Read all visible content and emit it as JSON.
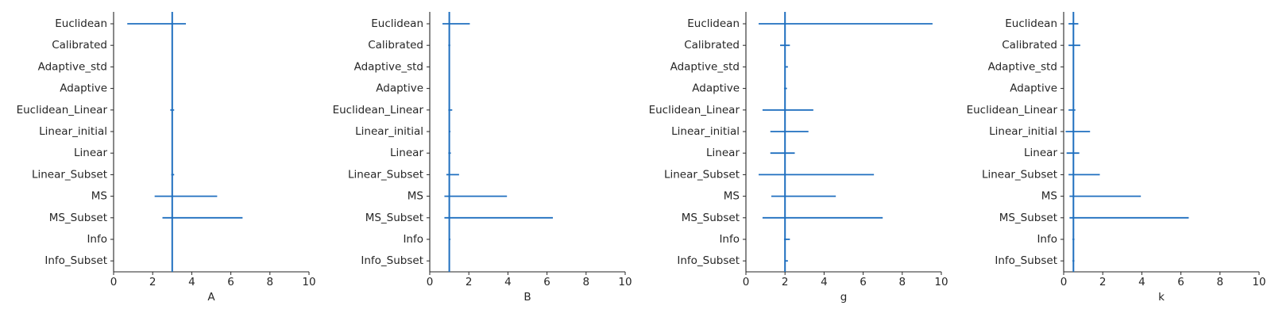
{
  "chart_data": [
    {
      "type": "errorbar",
      "xlabel": "A",
      "xlim": [
        0,
        10
      ],
      "xticks": [
        0,
        2,
        4,
        6,
        8,
        10
      ],
      "true_value": 3,
      "categories": [
        "Euclidean",
        "Calibrated",
        "Adaptive_std",
        "Adaptive",
        "Euclidean_Linear",
        "Linear_initial",
        "Linear",
        "Linear_Subset",
        "MS",
        "MS_Subset",
        "Info",
        "Info_Subset"
      ],
      "intervals": [
        [
          0.7,
          3.7
        ],
        [
          null,
          null
        ],
        [
          null,
          null
        ],
        [
          null,
          null
        ],
        [
          2.9,
          3.1
        ],
        [
          null,
          null
        ],
        [
          null,
          null
        ],
        [
          2.95,
          3.1
        ],
        [
          2.1,
          5.3
        ],
        [
          2.5,
          6.6
        ],
        [
          null,
          null
        ],
        [
          null,
          null
        ]
      ],
      "color": "#1f6fbf"
    },
    {
      "type": "errorbar",
      "xlabel": "B",
      "xlim": [
        0,
        10
      ],
      "xticks": [
        0,
        2,
        4,
        6,
        8,
        10
      ],
      "true_value": 1,
      "categories": [
        "Euclidean",
        "Calibrated",
        "Adaptive_std",
        "Adaptive",
        "Euclidean_Linear",
        "Linear_initial",
        "Linear",
        "Linear_Subset",
        "MS",
        "MS_Subset",
        "Info",
        "Info_Subset"
      ],
      "intervals": [
        [
          0.65,
          2.05
        ],
        [
          0.95,
          1.05
        ],
        [
          null,
          null
        ],
        [
          null,
          null
        ],
        [
          0.95,
          1.15
        ],
        [
          0.98,
          1.06
        ],
        [
          0.95,
          1.08
        ],
        [
          0.85,
          1.5
        ],
        [
          0.75,
          3.95
        ],
        [
          0.75,
          6.3
        ],
        [
          1.0,
          1.06
        ],
        [
          null,
          null
        ]
      ],
      "color": "#1f6fbf"
    },
    {
      "type": "errorbar",
      "xlabel": "g",
      "xlim": [
        0,
        10
      ],
      "xticks": [
        0,
        2,
        4,
        6,
        8,
        10
      ],
      "true_value": 2,
      "categories": [
        "Euclidean",
        "Calibrated",
        "Adaptive_std",
        "Adaptive",
        "Euclidean_Linear",
        "Linear_initial",
        "Linear",
        "Linear_Subset",
        "MS",
        "MS_Subset",
        "Info",
        "Info_Subset"
      ],
      "intervals": [
        [
          0.65,
          9.55
        ],
        [
          1.75,
          2.25
        ],
        [
          2.0,
          2.15
        ],
        [
          1.95,
          2.1
        ],
        [
          0.85,
          3.45
        ],
        [
          1.25,
          3.2
        ],
        [
          1.25,
          2.5
        ],
        [
          0.65,
          6.55
        ],
        [
          1.3,
          4.6
        ],
        [
          0.85,
          7.0
        ],
        [
          1.95,
          2.25
        ],
        [
          2.0,
          2.15
        ]
      ],
      "color": "#1f6fbf"
    },
    {
      "type": "errorbar",
      "xlabel": "k",
      "xlim": [
        0,
        10
      ],
      "xticks": [
        0,
        2,
        4,
        6,
        8,
        10
      ],
      "true_value": 0.5,
      "categories": [
        "Euclidean",
        "Calibrated",
        "Adaptive_std",
        "Adaptive",
        "Euclidean_Linear",
        "Linear_initial",
        "Linear",
        "Linear_Subset",
        "MS",
        "MS_Subset",
        "Info",
        "Info_Subset"
      ],
      "intervals": [
        [
          0.25,
          0.75
        ],
        [
          0.25,
          0.85
        ],
        [
          null,
          null
        ],
        [
          null,
          null
        ],
        [
          0.25,
          0.6
        ],
        [
          0.1,
          1.35
        ],
        [
          0.15,
          0.8
        ],
        [
          0.25,
          1.85
        ],
        [
          0.3,
          3.95
        ],
        [
          0.3,
          6.4
        ],
        [
          0.45,
          0.55
        ],
        [
          0.45,
          0.55
        ]
      ],
      "color": "#1f6fbf"
    }
  ]
}
